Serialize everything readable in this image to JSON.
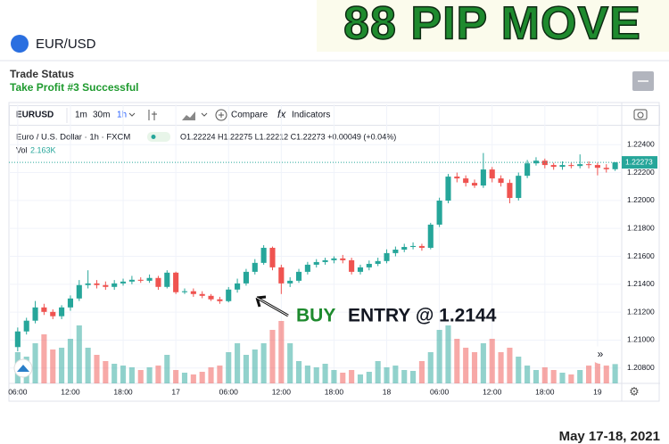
{
  "header": {
    "banner": "88 PIP MOVE",
    "symbol": "EUR/USD",
    "status_title": "Trade Status",
    "status": "Take Profit #3 Successful",
    "date": "May 17-18, 2021"
  },
  "toolbar": {
    "symbol": "EURUSD",
    "intervals": [
      "1m",
      "30m",
      "1h"
    ],
    "compare": "Compare",
    "indicators": "Indicators"
  },
  "chart_data": {
    "type": "candlestick",
    "legend": {
      "symbol": "Euro / U.S. Dollar · 1h · FXCM",
      "ohlc": "O1.22224 H1.22275 L1.22212 C1.22273 +0.00049 (+0.04%)",
      "vol_label": "Vol",
      "vol_value": "2.163K"
    },
    "annotation": {
      "buy": "BUY",
      "entry": "ENTRY @ 1.2144"
    },
    "up_color": "#26a69a",
    "down_color": "#ef5350",
    "open": [
      1.2095,
      1.21062,
      1.21139,
      1.21234,
      1.21202,
      1.21171,
      1.21234,
      1.21298,
      1.21394,
      1.21406,
      1.21394,
      1.21381,
      1.21406,
      1.21419,
      1.21432,
      1.21425,
      1.21445,
      1.21381,
      1.21483,
      1.21343,
      1.2135,
      1.2133,
      1.21317,
      1.21292,
      1.21279,
      1.21362,
      1.21406,
      1.21489,
      1.21553,
      1.21661,
      1.21521,
      1.21406,
      1.21425,
      1.21489,
      1.2154,
      1.21559,
      1.21572,
      1.21585,
      1.21572,
      1.21489,
      1.21521,
      1.21546,
      1.21566,
      1.21623,
      1.21648,
      1.21667,
      1.21674,
      1.21661,
      1.21827,
      1.21999,
      1.22171,
      1.22158,
      1.22126,
      1.22107,
      1.22222,
      1.22158,
      1.22126,
      1.22018,
      1.22177,
      1.22266,
      1.22285,
      1.22254,
      1.22241,
      1.22254,
      1.22247,
      1.2226,
      1.22254,
      1.22234,
      1.22224
    ],
    "high": [
      1.2109,
      1.2116,
      1.2128,
      1.2126,
      1.2122,
      1.2125,
      1.2132,
      1.2143,
      1.215,
      1.2143,
      1.2142,
      1.2143,
      1.2144,
      1.2146,
      1.2145,
      1.2147,
      1.2146,
      1.215,
      1.2149,
      1.2137,
      1.2137,
      1.2135,
      1.2133,
      1.2131,
      1.2138,
      1.2144,
      1.2151,
      1.2158,
      1.2168,
      1.2167,
      1.2154,
      1.2145,
      1.2151,
      1.2156,
      1.2158,
      1.2159,
      1.216,
      1.2161,
      1.2159,
      1.2154,
      1.2157,
      1.2159,
      1.2165,
      1.2167,
      1.2169,
      1.217,
      1.2169,
      1.2184,
      1.2202,
      1.2219,
      1.222,
      1.2218,
      1.2215,
      1.2234,
      1.2224,
      1.2218,
      1.2215,
      1.222,
      1.2229,
      1.2231,
      1.223,
      1.2227,
      1.2228,
      1.2227,
      1.2233,
      1.2228,
      1.2227,
      1.2226,
      1.22275
    ],
    "low": [
      1.2092,
      1.2104,
      1.2112,
      1.2118,
      1.2115,
      1.2115,
      1.2121,
      1.2128,
      1.2137,
      1.2137,
      1.2136,
      1.2136,
      1.2139,
      1.214,
      1.2141,
      1.2141,
      1.2136,
      1.2137,
      1.2133,
      1.2133,
      1.2131,
      1.213,
      1.2128,
      1.2126,
      1.2127,
      1.2134,
      1.2139,
      1.2147,
      1.2154,
      1.215,
      1.2133,
      1.2138,
      1.2141,
      1.2147,
      1.2152,
      1.2154,
      1.2155,
      1.2155,
      1.2147,
      1.2147,
      1.215,
      1.2153,
      1.2155,
      1.216,
      1.2163,
      1.2165,
      1.2164,
      1.2165,
      1.2181,
      1.2198,
      1.2213,
      1.221,
      1.2209,
      1.2209,
      1.2213,
      1.221,
      1.2198,
      1.22,
      1.2216,
      1.2225,
      1.2223,
      1.2222,
      1.2222,
      1.2223,
      1.2223,
      1.2223,
      1.2218,
      1.222,
      1.22212
    ],
    "close": [
      1.21062,
      1.21139,
      1.21234,
      1.21202,
      1.21171,
      1.21234,
      1.21298,
      1.21394,
      1.21406,
      1.21394,
      1.21381,
      1.21406,
      1.21419,
      1.21432,
      1.21425,
      1.21445,
      1.21381,
      1.21483,
      1.21343,
      1.2135,
      1.2133,
      1.21317,
      1.21292,
      1.21279,
      1.21362,
      1.21406,
      1.21489,
      1.21553,
      1.21661,
      1.21521,
      1.21406,
      1.21425,
      1.21489,
      1.2154,
      1.21559,
      1.21572,
      1.21585,
      1.21572,
      1.21489,
      1.21521,
      1.21546,
      1.21566,
      1.21623,
      1.21648,
      1.21667,
      1.21674,
      1.21661,
      1.21827,
      1.21999,
      1.22171,
      1.22158,
      1.22126,
      1.22107,
      1.22222,
      1.22158,
      1.22126,
      1.22018,
      1.22177,
      1.22266,
      1.22285,
      1.22254,
      1.22241,
      1.22254,
      1.22247,
      1.2226,
      1.22254,
      1.22234,
      1.22224,
      1.22273
    ],
    "volume": [
      3.5,
      3.0,
      4.5,
      5.5,
      3.8,
      4.0,
      5.0,
      6.5,
      4.0,
      3.2,
      2.5,
      2.2,
      2.0,
      1.8,
      1.5,
      1.8,
      2.0,
      3.2,
      1.5,
      1.2,
      1.0,
      1.3,
      1.8,
      2.0,
      3.5,
      4.5,
      3.2,
      3.8,
      4.5,
      6.0,
      7.0,
      4.5,
      2.5,
      2.0,
      1.8,
      2.2,
      1.5,
      1.2,
      1.5,
      1.0,
      1.3,
      2.5,
      1.8,
      2.0,
      1.5,
      1.4,
      2.5,
      3.5,
      6.0,
      6.5,
      5.0,
      4.0,
      3.5,
      4.5,
      5.0,
      3.5,
      4.0,
      3.0,
      2.0,
      1.5,
      1.8,
      1.5,
      1.2,
      1.0,
      1.5,
      2.0,
      2.5,
      2.0,
      2.163
    ],
    "vlim": [
      0,
      28.5
    ],
    "last_price": 1.22273,
    "grid": true,
    "xlim": [
      -1,
      68.75
    ],
    "xticks": [
      {
        "value": 0,
        "label": "06:00"
      },
      {
        "value": 6,
        "label": "12:00"
      },
      {
        "value": 12,
        "label": "18:00"
      },
      {
        "value": 18,
        "label": "17"
      },
      {
        "value": 24,
        "label": "06:00"
      },
      {
        "value": 30,
        "label": "12:00"
      },
      {
        "value": 36,
        "label": "18:00"
      },
      {
        "value": 42,
        "label": "18"
      },
      {
        "value": 48,
        "label": "06:00"
      },
      {
        "value": 54,
        "label": "12:00"
      },
      {
        "value": 60,
        "label": "18:00"
      },
      {
        "value": 66,
        "label": "19"
      }
    ],
    "ylim": [
      1.2069,
      1.2251
    ],
    "yticks": [
      {
        "value": 1.224,
        "label": "1.22400"
      },
      {
        "value": 1.222,
        "label": "1.22200"
      },
      {
        "value": 1.22,
        "label": "1.22000"
      },
      {
        "value": 1.218,
        "label": "1.21800"
      },
      {
        "value": 1.216,
        "label": "1.21600"
      },
      {
        "value": 1.214,
        "label": "1.21400"
      },
      {
        "value": 1.212,
        "label": "1.21200"
      },
      {
        "value": 1.21,
        "label": "1.21000"
      },
      {
        "value": 1.208,
        "label": "1.20800"
      }
    ]
  }
}
